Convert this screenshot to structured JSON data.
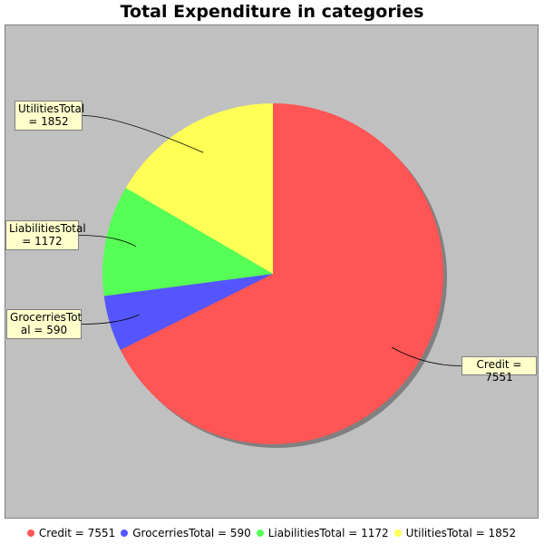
{
  "chart_data": {
    "type": "pie",
    "title": "Total Expenditure in categories",
    "slices": [
      {
        "name": "Credit",
        "value": 7551,
        "color": "#ff5555",
        "label_text": "Credit = 7551",
        "legend_text": "Credit = 7551"
      },
      {
        "name": "GrocerriesTotal",
        "value": 590,
        "color": "#5555ff",
        "label_text": "GrocerriesTot\nal = 590",
        "legend_text": "GrocerriesTotal = 590"
      },
      {
        "name": "LiabilitiesTotal",
        "value": 1172,
        "color": "#55ff55",
        "label_text": "LiabilitiesTotal\n= 1172",
        "legend_text": "LiabilitiesTotal = 1172"
      },
      {
        "name": "UtilitiesTotal",
        "value": 1852,
        "color": "#ffff55",
        "label_text": "UtilitiesTotal\n= 1852",
        "legend_text": "UtilitiesTotal = 1852"
      }
    ],
    "start_angle_deg": 90,
    "direction": "clockwise",
    "legend_position": "bottom",
    "plot_background": "#c0c0c0"
  }
}
